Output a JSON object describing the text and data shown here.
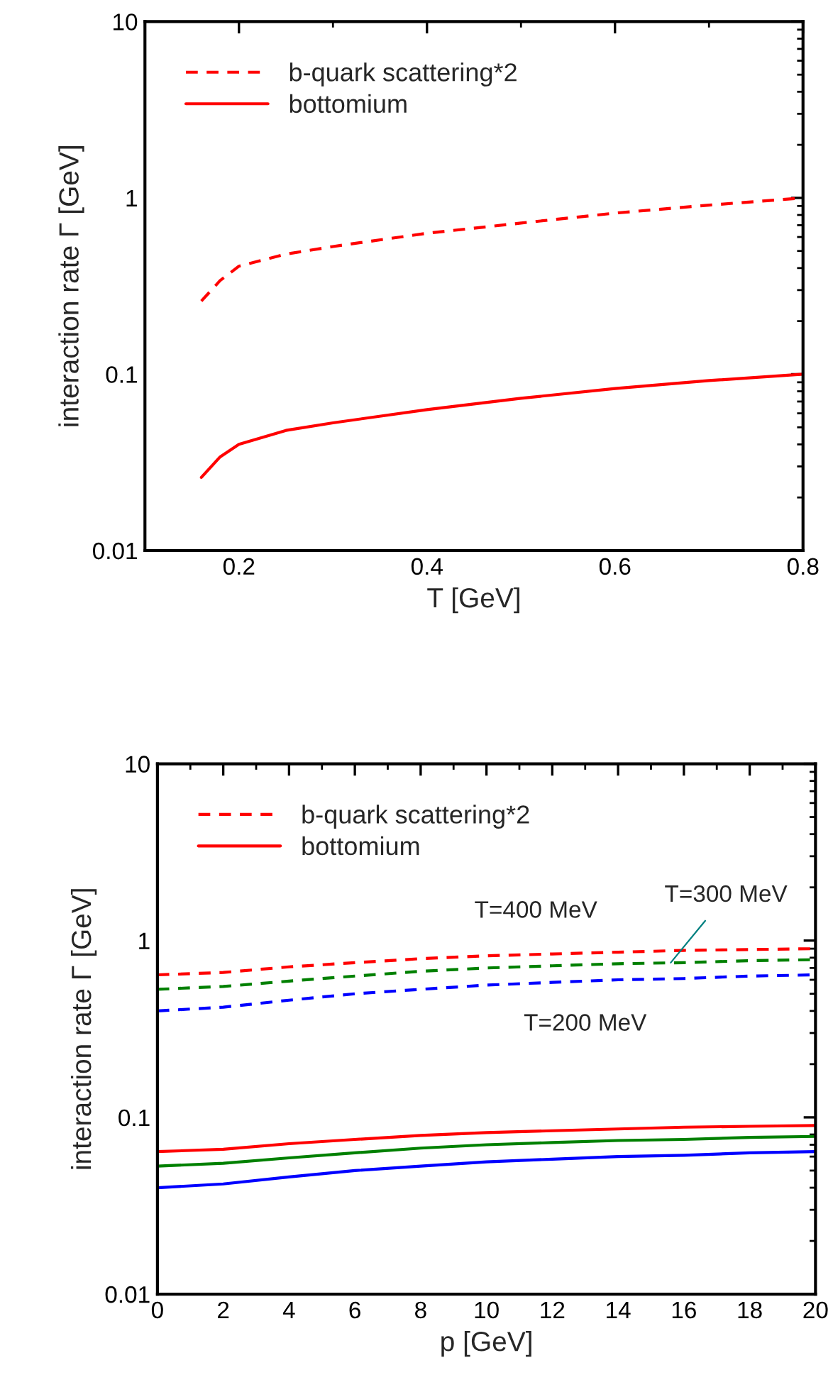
{
  "chart_data": [
    {
      "type": "line",
      "xlabel": "T [GeV]",
      "ylabel": "interaction rate Γ [GeV]",
      "log": "y",
      "xlim": [
        0.1,
        0.8
      ],
      "xticks": [
        0.2,
        0.4,
        0.6,
        0.8
      ],
      "ylim": [
        0.01,
        10
      ],
      "yticks": [
        0.01,
        0.1,
        1,
        10
      ],
      "legend": "top left",
      "grid": false,
      "series": [
        {
          "name": "b-quark scattering*2",
          "color": "#ff0000",
          "line_style": "dashed",
          "x": [
            0.16,
            0.18,
            0.2,
            0.25,
            0.3,
            0.4,
            0.5,
            0.6,
            0.7,
            0.8
          ],
          "values": [
            0.26,
            0.34,
            0.41,
            0.48,
            0.53,
            0.63,
            0.72,
            0.82,
            0.91,
            1.0
          ]
        },
        {
          "name": "bottomium",
          "color": "#ff0000",
          "line_style": "solid",
          "x": [
            0.16,
            0.18,
            0.2,
            0.25,
            0.3,
            0.4,
            0.5,
            0.6,
            0.7,
            0.8
          ],
          "values": [
            0.026,
            0.034,
            0.04,
            0.048,
            0.053,
            0.063,
            0.073,
            0.083,
            0.092,
            0.1
          ]
        }
      ]
    },
    {
      "type": "line",
      "xlabel": "p [GeV]",
      "ylabel": "interaction rate Γ [GeV]",
      "log": "y",
      "xlim": [
        0,
        20
      ],
      "xticks": [
        0,
        2,
        4,
        6,
        8,
        10,
        12,
        14,
        16,
        18,
        20
      ],
      "ylim": [
        0.01,
        10
      ],
      "yticks": [
        0.01,
        0.1,
        1,
        10
      ],
      "legend": "top left",
      "grid": false,
      "x": [
        0,
        2,
        4,
        6,
        8,
        10,
        12,
        14,
        16,
        18,
        20
      ],
      "series": [
        {
          "name": "b-quark scattering*2",
          "color": "#ff0000",
          "line_style": "dashed",
          "values": [
            0.64,
            0.66,
            0.71,
            0.75,
            0.79,
            0.82,
            0.84,
            0.86,
            0.88,
            0.89,
            0.9
          ]
        },
        {
          "name": "bottomium",
          "color": "#ff0000",
          "line_style": "solid",
          "values": [
            0.064,
            0.066,
            0.071,
            0.075,
            0.079,
            0.082,
            0.084,
            0.086,
            0.088,
            0.089,
            0.09
          ]
        },
        {
          "color": "#008000",
          "line_style": "dashed",
          "values": [
            0.53,
            0.55,
            0.59,
            0.63,
            0.67,
            0.7,
            0.72,
            0.74,
            0.75,
            0.77,
            0.78
          ]
        },
        {
          "color": "#008000",
          "line_style": "solid",
          "values": [
            0.053,
            0.055,
            0.059,
            0.063,
            0.067,
            0.07,
            0.072,
            0.074,
            0.075,
            0.077,
            0.078
          ]
        },
        {
          "color": "#0000ff",
          "line_style": "dashed",
          "values": [
            0.4,
            0.42,
            0.46,
            0.5,
            0.53,
            0.56,
            0.58,
            0.6,
            0.61,
            0.63,
            0.64
          ]
        },
        {
          "color": "#0000ff",
          "line_style": "solid",
          "values": [
            0.04,
            0.042,
            0.046,
            0.05,
            0.053,
            0.056,
            0.058,
            0.06,
            0.061,
            0.063,
            0.064
          ]
        }
      ],
      "annotations": [
        {
          "text": "T=400 MeV",
          "x": 11.5,
          "y": 0.83
        },
        {
          "text": "T=300 MeV",
          "x": 15.6,
          "y": 0.75
        },
        {
          "text": "T=200 MeV",
          "x": 13,
          "y": 0.59
        }
      ]
    }
  ]
}
